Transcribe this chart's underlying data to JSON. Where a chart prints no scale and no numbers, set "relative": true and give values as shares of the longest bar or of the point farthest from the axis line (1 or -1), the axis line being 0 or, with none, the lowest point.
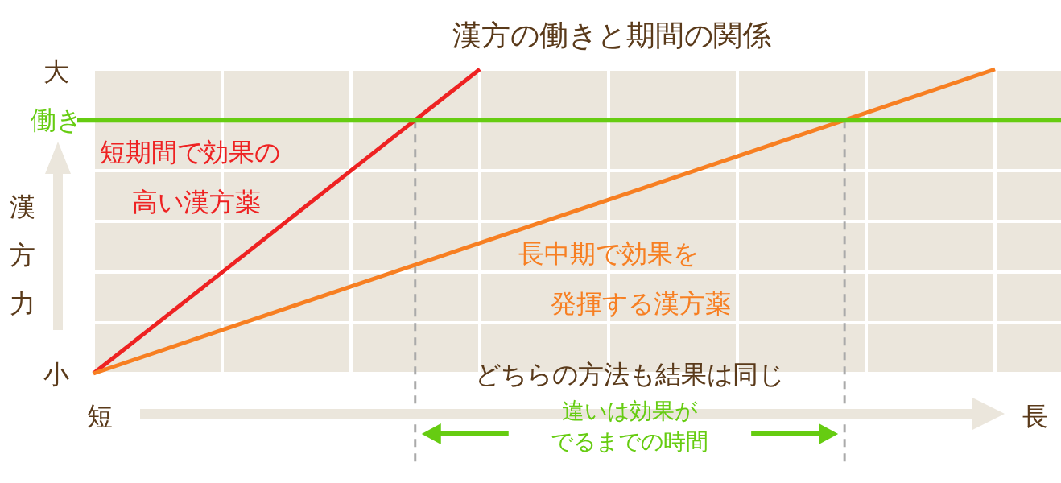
{
  "chart_data": {
    "type": "line",
    "title": "漢方の働きと期間の関係",
    "ylabel": "漢方力",
    "legend": false,
    "grid": true,
    "marker": "none",
    "line_style": "solid",
    "categories": [
      null,
      null,
      null,
      null,
      null,
      null,
      null,
      null
    ],
    "relative": true,
    "series": [
      {
        "name": "短期間で効果の高い漢方薬",
        "color": "#ee2222",
        "values": [
          0,
          0.333,
          0.667,
          1,
          null,
          null,
          null,
          null
        ]
      },
      {
        "name": "長中期で効果を発揮する漢方薬",
        "color": "#f77f22",
        "values": [
          0,
          0.143,
          0.286,
          0.429,
          0.571,
          0.714,
          0.857,
          1
        ]
      }
    ],
    "ref_lines": [
      {
        "axis": "y",
        "value": 0.833,
        "label": "働き",
        "color": "#66cc11",
        "line_style": "solid"
      }
    ],
    "annotations": [
      "大",
      "小",
      "短",
      "長",
      "どちらの方法も結果は同じ",
      "違いは効果がでるまでの時間"
    ]
  }
}
